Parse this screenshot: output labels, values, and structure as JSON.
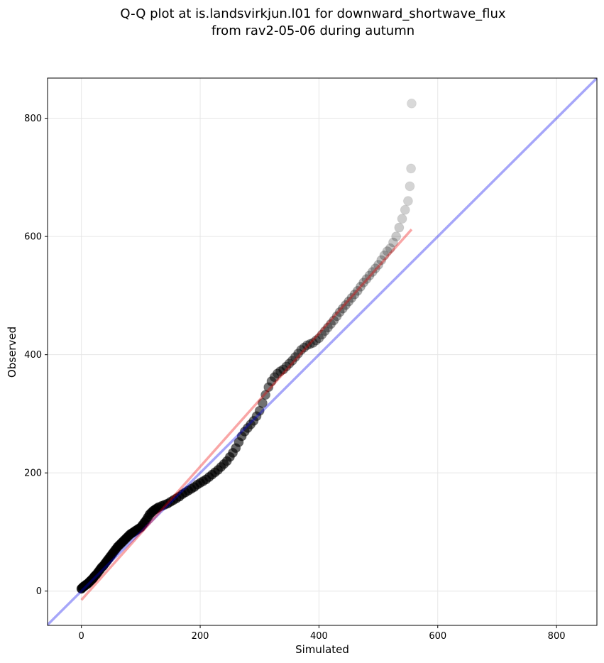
{
  "chart_data": {
    "type": "scatter",
    "title_line1": "Q-Q plot at is.landsvirkjun.l01 for downward_shortwave_flux",
    "title_line2": "from rav2-05-06 during autumn",
    "xlabel": "Simulated",
    "ylabel": "Observed",
    "xlim": [
      -57,
      868
    ],
    "ylim": [
      -58,
      868
    ],
    "xticks": [
      0,
      200,
      400,
      600,
      800
    ],
    "yticks": [
      0,
      200,
      400,
      600,
      800
    ],
    "grid": true,
    "colors": {
      "points": "#000000",
      "identity_line": "#0000ee",
      "fit_line": "#ee0000"
    },
    "identity_line": {
      "x": [
        -57,
        868
      ],
      "y": [
        -57,
        868
      ]
    },
    "fit_line": {
      "x": [
        0,
        556
      ],
      "y": [
        -15,
        612
      ]
    },
    "points": {
      "x": [
        0,
        2,
        4,
        6,
        8,
        10,
        12,
        14,
        16,
        18,
        20,
        22,
        25,
        28,
        31,
        34,
        37,
        40,
        43,
        46,
        49,
        52,
        55,
        58,
        61,
        64,
        67,
        70,
        73,
        76,
        79,
        82,
        85,
        88,
        91,
        94,
        97,
        100,
        103,
        106,
        109,
        112,
        115,
        118,
        121,
        124,
        127,
        130,
        135,
        140,
        145,
        150,
        155,
        160,
        165,
        170,
        175,
        180,
        185,
        190,
        195,
        200,
        205,
        210,
        215,
        220,
        225,
        230,
        235,
        240,
        245,
        250,
        255,
        260,
        265,
        270,
        275,
        280,
        285,
        290,
        295,
        300,
        305,
        310,
        315,
        320,
        325,
        330,
        335,
        340,
        345,
        350,
        355,
        360,
        365,
        370,
        375,
        380,
        385,
        390,
        395,
        400,
        405,
        410,
        415,
        420,
        425,
        430,
        435,
        440,
        445,
        450,
        455,
        460,
        465,
        470,
        475,
        480,
        485,
        490,
        495,
        500,
        505,
        510,
        515,
        520,
        525,
        530,
        535,
        540,
        545,
        550,
        553,
        555,
        556
      ],
      "y": [
        4,
        6,
        8,
        9,
        11,
        12,
        14,
        16,
        18,
        20,
        22,
        25,
        28,
        32,
        36,
        40,
        43,
        47,
        51,
        55,
        59,
        63,
        67,
        71,
        75,
        78,
        81,
        84,
        87,
        90,
        93,
        96,
        98,
        100,
        102,
        104,
        106,
        108,
        112,
        116,
        120,
        125,
        130,
        133,
        136,
        138,
        140,
        142,
        144,
        146,
        148,
        151,
        154,
        157,
        160,
        164,
        167,
        170,
        173,
        176,
        180,
        183,
        186,
        189,
        193,
        197,
        201,
        205,
        210,
        215,
        220,
        227,
        234,
        242,
        252,
        262,
        270,
        276,
        282,
        288,
        296,
        305,
        318,
        332,
        345,
        355,
        362,
        368,
        372,
        375,
        380,
        385,
        390,
        396,
        402,
        408,
        412,
        416,
        418,
        420,
        424,
        428,
        434,
        440,
        446,
        452,
        458,
        465,
        472,
        478,
        484,
        490,
        496,
        502,
        508,
        515,
        522,
        528,
        534,
        540,
        546,
        552,
        560,
        568,
        575,
        580,
        590,
        600,
        615,
        630,
        645,
        660,
        685,
        715,
        825
      ]
    }
  }
}
